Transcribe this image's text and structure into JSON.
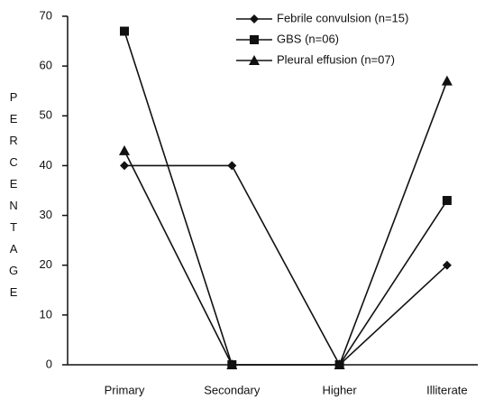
{
  "chart_data": {
    "type": "line",
    "y_label": "PERCENTAGE",
    "categories": [
      "Primary",
      "Secondary",
      "Higher",
      "Illiterate"
    ],
    "series": [
      {
        "name": "Febrile convulsion (n=15)",
        "color": "#111111",
        "marker": "diamond",
        "values": [
          40,
          40,
          0,
          20
        ]
      },
      {
        "name": "GBS (n=06)",
        "color": "#111111",
        "marker": "square",
        "values": [
          67,
          0,
          0,
          33
        ]
      },
      {
        "name": "Pleural effusion (n=07)",
        "color": "#111111",
        "marker": "triangle",
        "values": [
          43,
          0,
          0,
          57
        ]
      }
    ],
    "ylim": [
      0,
      70
    ],
    "yticks": [
      0,
      10,
      20,
      30,
      40,
      50,
      60,
      70
    ],
    "grid": false,
    "legend": "top-right"
  }
}
